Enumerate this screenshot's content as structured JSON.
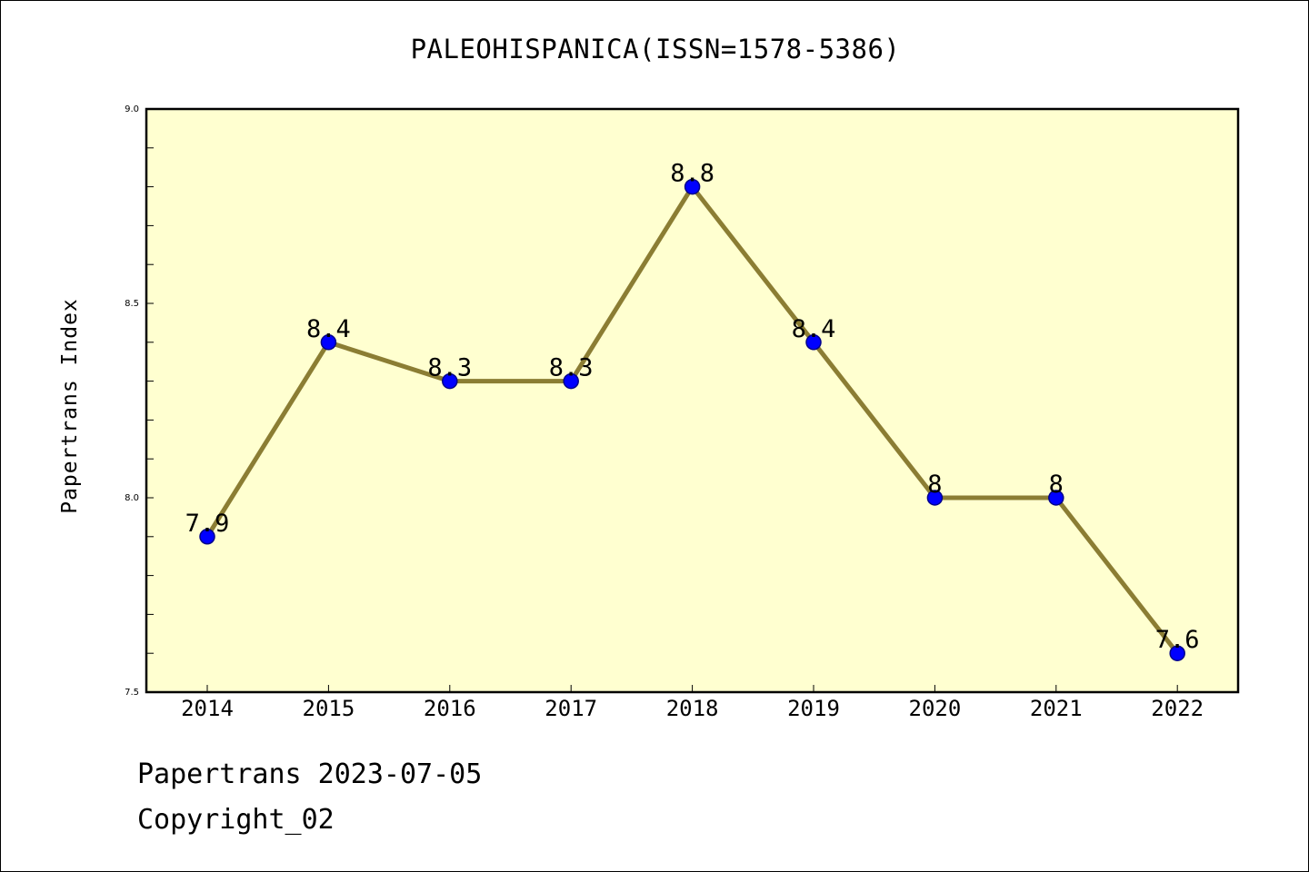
{
  "chart_data": {
    "type": "line",
    "title": "PALEOHISPANICA(ISSN=1578-5386)",
    "xlabel": "",
    "ylabel": "Papertrans Index",
    "categories": [
      "2014",
      "2015",
      "2016",
      "2017",
      "2018",
      "2019",
      "2020",
      "2021",
      "2022"
    ],
    "values": [
      7.9,
      8.4,
      8.3,
      8.3,
      8.8,
      8.4,
      8.0,
      8.0,
      7.6
    ],
    "value_labels": [
      "7.9",
      "8.4",
      "8.3",
      "8.3",
      "8.8",
      "8.4",
      "8",
      "8",
      "7.6"
    ],
    "ylim": [
      7.5,
      9.0
    ],
    "yticks": [
      7.5,
      8.0,
      8.5,
      9.0
    ],
    "ytick_labels": [
      "7.5",
      "8.0",
      "8.5",
      "9.0"
    ],
    "grid": false,
    "colors": {
      "plot_background": "#ffffd0",
      "line": "#8b7d33",
      "marker_fill": "#0000ff",
      "marker_edge": "#00008b"
    }
  },
  "footer": {
    "date_line": "Papertrans 2023-07-05",
    "copyright_line": "Copyright_02"
  }
}
